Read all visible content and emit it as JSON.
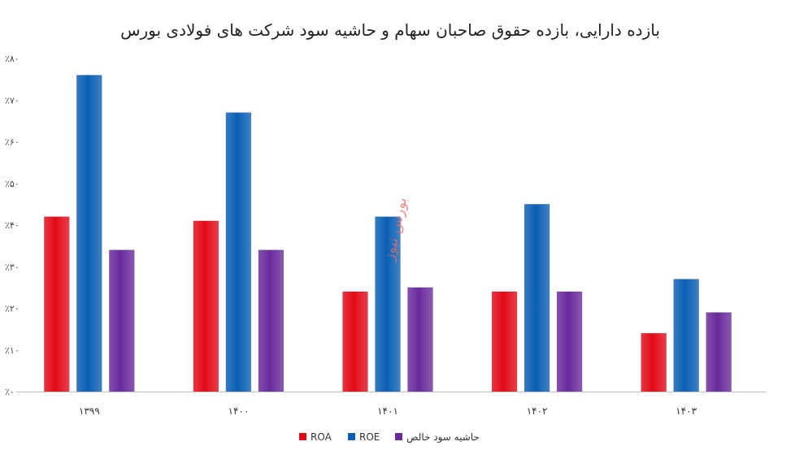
{
  "chart_data": {
    "type": "bar",
    "title": "بازده دارایی، بازده حقوق صاحبان سهام و حاشیه سود شرکت های فولادی بورس",
    "categories": [
      "۱۳۹۹",
      "۱۴۰۰",
      "۱۴۰۱",
      "۱۴۰۲",
      "۱۴۰۳"
    ],
    "series": [
      {
        "name": "ROA",
        "color": "#e30a17",
        "values": [
          0.42,
          0.41,
          0.24,
          0.24,
          0.14
        ]
      },
      {
        "name": "ROE",
        "color": "#0a5fb5",
        "values": [
          0.76,
          0.67,
          0.42,
          0.45,
          0.27
        ]
      },
      {
        "name": "حاشیه سود خالص",
        "color": "#6a2a9c",
        "values": [
          0.34,
          0.34,
          0.25,
          0.24,
          0.19
        ]
      }
    ],
    "ylim": [
      0,
      0.8
    ],
    "yticks": [
      {
        "value": 0,
        "label": "٪۰"
      },
      {
        "value": 0.1,
        "label": "٪۱۰"
      },
      {
        "value": 0.2,
        "label": "٪۲۰"
      },
      {
        "value": 0.3,
        "label": "٪۳۰"
      },
      {
        "value": 0.4,
        "label": "٪۴۰"
      },
      {
        "value": 0.5,
        "label": "٪۵۰"
      },
      {
        "value": 0.6,
        "label": "٪۶۰"
      },
      {
        "value": 0.7,
        "label": "٪۷۰"
      },
      {
        "value": 0.8,
        "label": "٪۸۰"
      }
    ],
    "grid": false,
    "legend_position": "bottom-center",
    "watermark": "بورس نیوز"
  }
}
